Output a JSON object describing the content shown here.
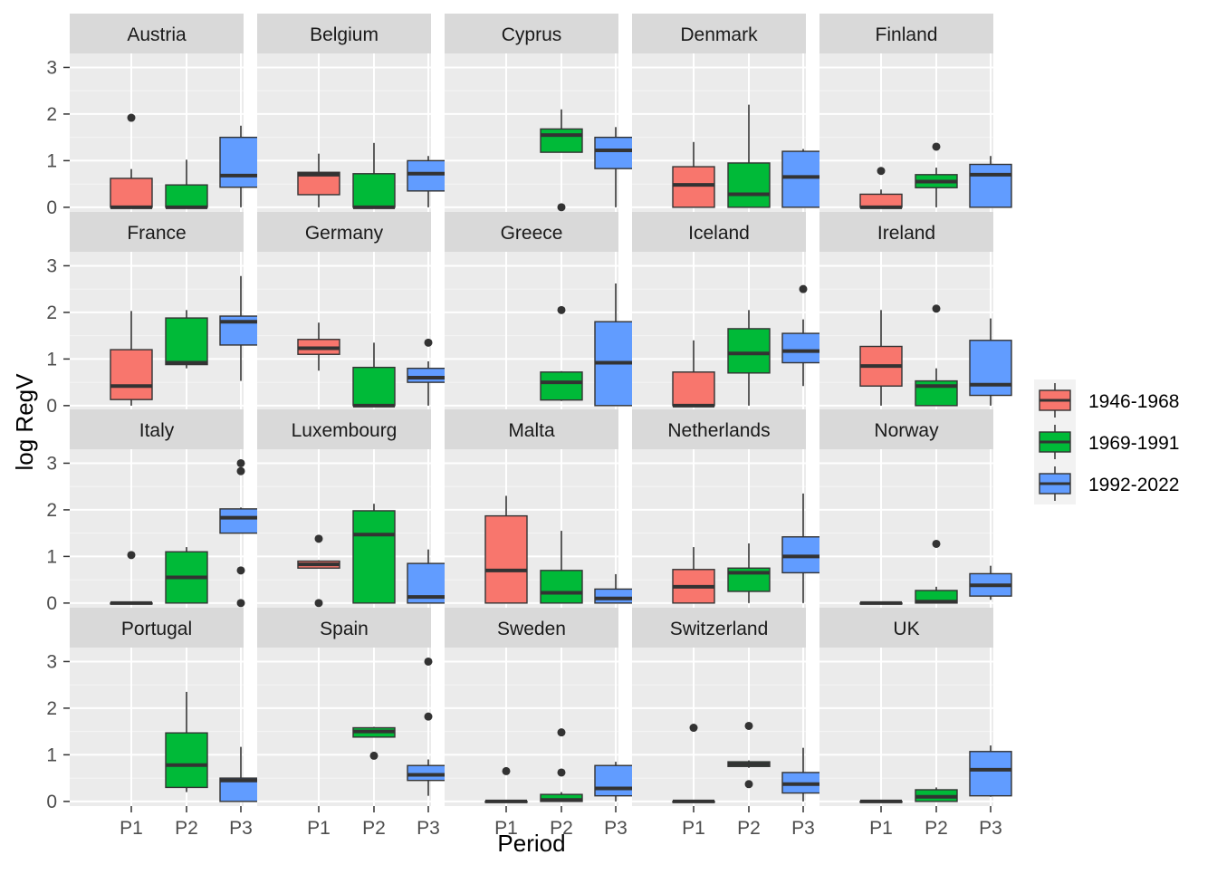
{
  "chart_data": {
    "type": "boxplot",
    "facet_layout": "5 columns x 4 rows",
    "xlabel": "Period",
    "ylabel": "log RegV",
    "categories": [
      "P1",
      "P2",
      "P3"
    ],
    "ylim": [
      -0.1,
      3.3
    ],
    "yticks": [
      0,
      1,
      2,
      3
    ],
    "grid": true,
    "legend": {
      "placement": "right",
      "entries": [
        {
          "label": "1946-1968",
          "color": "#F8766D"
        },
        {
          "label": "1969-1991",
          "color": "#00BA38"
        },
        {
          "label": "1992-2022",
          "color": "#619CFF"
        }
      ]
    },
    "panels": [
      {
        "name": "Austria",
        "boxes": [
          {
            "period": "P1",
            "lower": 0,
            "q1": 0,
            "median": 0,
            "q3": 0.62,
            "upper": 0.82,
            "outliers": [
              1.92
            ]
          },
          {
            "period": "P2",
            "lower": 0,
            "q1": 0,
            "median": 0,
            "q3": 0.48,
            "upper": 1.02,
            "outliers": []
          },
          {
            "period": "P3",
            "lower": 0,
            "q1": 0.43,
            "median": 0.68,
            "q3": 1.5,
            "upper": 1.75,
            "outliers": []
          }
        ]
      },
      {
        "name": "Belgium",
        "boxes": [
          {
            "period": "P1",
            "lower": 0,
            "q1": 0.27,
            "median": 0.7,
            "q3": 0.75,
            "upper": 1.15,
            "outliers": []
          },
          {
            "period": "P2",
            "lower": 0,
            "q1": 0,
            "median": 0,
            "q3": 0.72,
            "upper": 1.38,
            "outliers": []
          },
          {
            "period": "P3",
            "lower": 0,
            "q1": 0.35,
            "median": 0.72,
            "q3": 1.0,
            "upper": 1.1,
            "outliers": []
          }
        ]
      },
      {
        "name": "Cyprus",
        "boxes": [
          {
            "period": "P2",
            "lower": 1.18,
            "q1": 1.18,
            "median": 1.55,
            "q3": 1.68,
            "upper": 2.1,
            "outliers": [
              0
            ]
          },
          {
            "period": "P3",
            "lower": 0,
            "q1": 0.83,
            "median": 1.22,
            "q3": 1.5,
            "upper": 1.72,
            "outliers": []
          }
        ]
      },
      {
        "name": "Denmark",
        "boxes": [
          {
            "period": "P1",
            "lower": 0,
            "q1": 0,
            "median": 0.48,
            "q3": 0.87,
            "upper": 1.4,
            "outliers": []
          },
          {
            "period": "P2",
            "lower": 0,
            "q1": 0,
            "median": 0.28,
            "q3": 0.95,
            "upper": 2.2,
            "outliers": []
          },
          {
            "period": "P3",
            "lower": 0,
            "q1": 0,
            "median": 0.65,
            "q3": 1.2,
            "upper": 1.25,
            "outliers": []
          }
        ]
      },
      {
        "name": "Finland",
        "boxes": [
          {
            "period": "P1",
            "lower": 0,
            "q1": 0,
            "median": 0,
            "q3": 0.28,
            "upper": 0.38,
            "outliers": [
              0.78
            ]
          },
          {
            "period": "P2",
            "lower": 0,
            "q1": 0.42,
            "median": 0.55,
            "q3": 0.7,
            "upper": 0.85,
            "outliers": [
              1.3
            ]
          },
          {
            "period": "P3",
            "lower": 0,
            "q1": 0,
            "median": 0.7,
            "q3": 0.92,
            "upper": 1.1,
            "outliers": []
          }
        ]
      },
      {
        "name": "France",
        "boxes": [
          {
            "period": "P1",
            "lower": 0,
            "q1": 0.13,
            "median": 0.42,
            "q3": 1.2,
            "upper": 2.03,
            "outliers": []
          },
          {
            "period": "P2",
            "lower": 0.8,
            "q1": 0.88,
            "median": 0.92,
            "q3": 1.88,
            "upper": 2.05,
            "outliers": []
          },
          {
            "period": "P3",
            "lower": 0.53,
            "q1": 1.3,
            "median": 1.8,
            "q3": 1.92,
            "upper": 2.78,
            "outliers": []
          }
        ]
      },
      {
        "name": "Germany",
        "boxes": [
          {
            "period": "P1",
            "lower": 0.75,
            "q1": 1.1,
            "median": 1.23,
            "q3": 1.42,
            "upper": 1.78,
            "outliers": []
          },
          {
            "period": "P2",
            "lower": 0,
            "q1": 0,
            "median": 0,
            "q3": 0.82,
            "upper": 1.35,
            "outliers": []
          },
          {
            "period": "P3",
            "lower": 0,
            "q1": 0.5,
            "median": 0.6,
            "q3": 0.8,
            "upper": 0.95,
            "outliers": [
              1.35
            ]
          }
        ]
      },
      {
        "name": "Greece",
        "boxes": [
          {
            "period": "P2",
            "lower": 0.1,
            "q1": 0.12,
            "median": 0.5,
            "q3": 0.72,
            "upper": 0.74,
            "outliers": [
              2.05
            ]
          },
          {
            "period": "P3",
            "lower": 0,
            "q1": 0,
            "median": 0.92,
            "q3": 1.8,
            "upper": 2.62,
            "outliers": []
          }
        ]
      },
      {
        "name": "Iceland",
        "boxes": [
          {
            "period": "P1",
            "lower": 0,
            "q1": 0,
            "median": 0,
            "q3": 0.72,
            "upper": 1.4,
            "outliers": []
          },
          {
            "period": "P2",
            "lower": 0,
            "q1": 0.7,
            "median": 1.12,
            "q3": 1.65,
            "upper": 2.05,
            "outliers": []
          },
          {
            "period": "P3",
            "lower": 0.42,
            "q1": 0.92,
            "median": 1.17,
            "q3": 1.55,
            "upper": 1.85,
            "outliers": [
              2.5
            ]
          }
        ]
      },
      {
        "name": "Ireland",
        "boxes": [
          {
            "period": "P1",
            "lower": 0,
            "q1": 0.42,
            "median": 0.85,
            "q3": 1.27,
            "upper": 2.05,
            "outliers": []
          },
          {
            "period": "P2",
            "lower": 0,
            "q1": 0,
            "median": 0.42,
            "q3": 0.53,
            "upper": 0.8,
            "outliers": [
              2.08
            ]
          },
          {
            "period": "P3",
            "lower": 0,
            "q1": 0.22,
            "median": 0.45,
            "q3": 1.4,
            "upper": 1.87,
            "outliers": []
          }
        ]
      },
      {
        "name": "Italy",
        "boxes": [
          {
            "period": "P1",
            "lower": 0,
            "q1": 0,
            "median": 0,
            "q3": 0,
            "upper": 0,
            "outliers": [
              1.03
            ]
          },
          {
            "period": "P2",
            "lower": 0,
            "q1": 0,
            "median": 0.55,
            "q3": 1.1,
            "upper": 1.2,
            "outliers": []
          },
          {
            "period": "P3",
            "lower": 1.5,
            "q1": 1.5,
            "median": 1.83,
            "q3": 2.02,
            "upper": 2.05,
            "outliers": [
              3.0,
              2.83,
              0.7,
              0
            ]
          }
        ]
      },
      {
        "name": "Luxembourg",
        "boxes": [
          {
            "period": "P1",
            "lower": 0.75,
            "q1": 0.75,
            "median": 0.83,
            "q3": 0.9,
            "upper": 0.92,
            "outliers": [
              1.38,
              0
            ]
          },
          {
            "period": "P2",
            "lower": 0,
            "q1": 0,
            "median": 1.47,
            "q3": 1.98,
            "upper": 2.13,
            "outliers": []
          },
          {
            "period": "P3",
            "lower": 0,
            "q1": 0,
            "median": 0.13,
            "q3": 0.85,
            "upper": 1.15,
            "outliers": []
          }
        ]
      },
      {
        "name": "Malta",
        "boxes": [
          {
            "period": "P1",
            "lower": 0,
            "q1": 0,
            "median": 0.7,
            "q3": 1.87,
            "upper": 2.3,
            "outliers": []
          },
          {
            "period": "P2",
            "lower": 0,
            "q1": 0,
            "median": 0.22,
            "q3": 0.7,
            "upper": 1.55,
            "outliers": []
          },
          {
            "period": "P3",
            "lower": 0,
            "q1": 0,
            "median": 0.1,
            "q3": 0.3,
            "upper": 0.62,
            "outliers": []
          }
        ]
      },
      {
        "name": "Netherlands",
        "boxes": [
          {
            "period": "P1",
            "lower": 0,
            "q1": 0,
            "median": 0.35,
            "q3": 0.72,
            "upper": 1.2,
            "outliers": []
          },
          {
            "period": "P2",
            "lower": 0,
            "q1": 0.25,
            "median": 0.65,
            "q3": 0.75,
            "upper": 1.28,
            "outliers": []
          },
          {
            "period": "P3",
            "lower": 0,
            "q1": 0.65,
            "median": 1.0,
            "q3": 1.42,
            "upper": 2.35,
            "outliers": []
          }
        ]
      },
      {
        "name": "Norway",
        "boxes": [
          {
            "period": "P1",
            "lower": 0,
            "q1": 0,
            "median": 0,
            "q3": 0,
            "upper": 0,
            "outliers": []
          },
          {
            "period": "P2",
            "lower": 0,
            "q1": 0,
            "median": 0.03,
            "q3": 0.27,
            "upper": 0.35,
            "outliers": [
              1.27
            ]
          },
          {
            "period": "P3",
            "lower": 0.07,
            "q1": 0.15,
            "median": 0.38,
            "q3": 0.63,
            "upper": 0.8,
            "outliers": []
          }
        ]
      },
      {
        "name": "Portugal",
        "boxes": [
          {
            "period": "P2",
            "lower": 0.2,
            "q1": 0.3,
            "median": 0.78,
            "q3": 1.47,
            "upper": 2.35,
            "outliers": []
          },
          {
            "period": "P3",
            "lower": 0,
            "q1": 0,
            "median": 0.45,
            "q3": 0.5,
            "upper": 1.17,
            "outliers": []
          }
        ]
      },
      {
        "name": "Spain",
        "boxes": [
          {
            "period": "P2",
            "lower": 1.38,
            "q1": 1.38,
            "median": 1.5,
            "q3": 1.58,
            "upper": 1.6,
            "outliers": [
              0.98
            ]
          },
          {
            "period": "P3",
            "lower": 0.12,
            "q1": 0.45,
            "median": 0.57,
            "q3": 0.77,
            "upper": 0.9,
            "outliers": [
              3.0,
              1.82
            ]
          }
        ]
      },
      {
        "name": "Sweden",
        "boxes": [
          {
            "period": "P1",
            "lower": 0,
            "q1": 0,
            "median": 0,
            "q3": 0,
            "upper": 0,
            "outliers": [
              0.65
            ]
          },
          {
            "period": "P2",
            "lower": 0,
            "q1": 0,
            "median": 0.03,
            "q3": 0.15,
            "upper": 0.2,
            "outliers": [
              1.48,
              0.62
            ]
          },
          {
            "period": "P3",
            "lower": 0,
            "q1": 0.12,
            "median": 0.28,
            "q3": 0.77,
            "upper": 0.85,
            "outliers": []
          }
        ]
      },
      {
        "name": "Switzerland",
        "boxes": [
          {
            "period": "P1",
            "lower": 0,
            "q1": 0,
            "median": 0,
            "q3": 0,
            "upper": 0,
            "outliers": [
              1.58
            ]
          },
          {
            "period": "P2",
            "lower": 0.72,
            "q1": 0.75,
            "median": 0.8,
            "q3": 0.85,
            "upper": 0.88,
            "outliers": [
              1.62,
              0.37
            ]
          },
          {
            "period": "P3",
            "lower": 0,
            "q1": 0.18,
            "median": 0.37,
            "q3": 0.62,
            "upper": 1.15,
            "outliers": []
          }
        ]
      },
      {
        "name": "UK",
        "boxes": [
          {
            "period": "P1",
            "lower": 0,
            "q1": 0,
            "median": 0,
            "q3": 0,
            "upper": 0,
            "outliers": []
          },
          {
            "period": "P2",
            "lower": 0,
            "q1": 0,
            "median": 0.1,
            "q3": 0.25,
            "upper": 0.3,
            "outliers": []
          },
          {
            "period": "P3",
            "lower": 0.1,
            "q1": 0.12,
            "median": 0.68,
            "q3": 1.07,
            "upper": 1.2,
            "outliers": []
          }
        ]
      }
    ]
  }
}
